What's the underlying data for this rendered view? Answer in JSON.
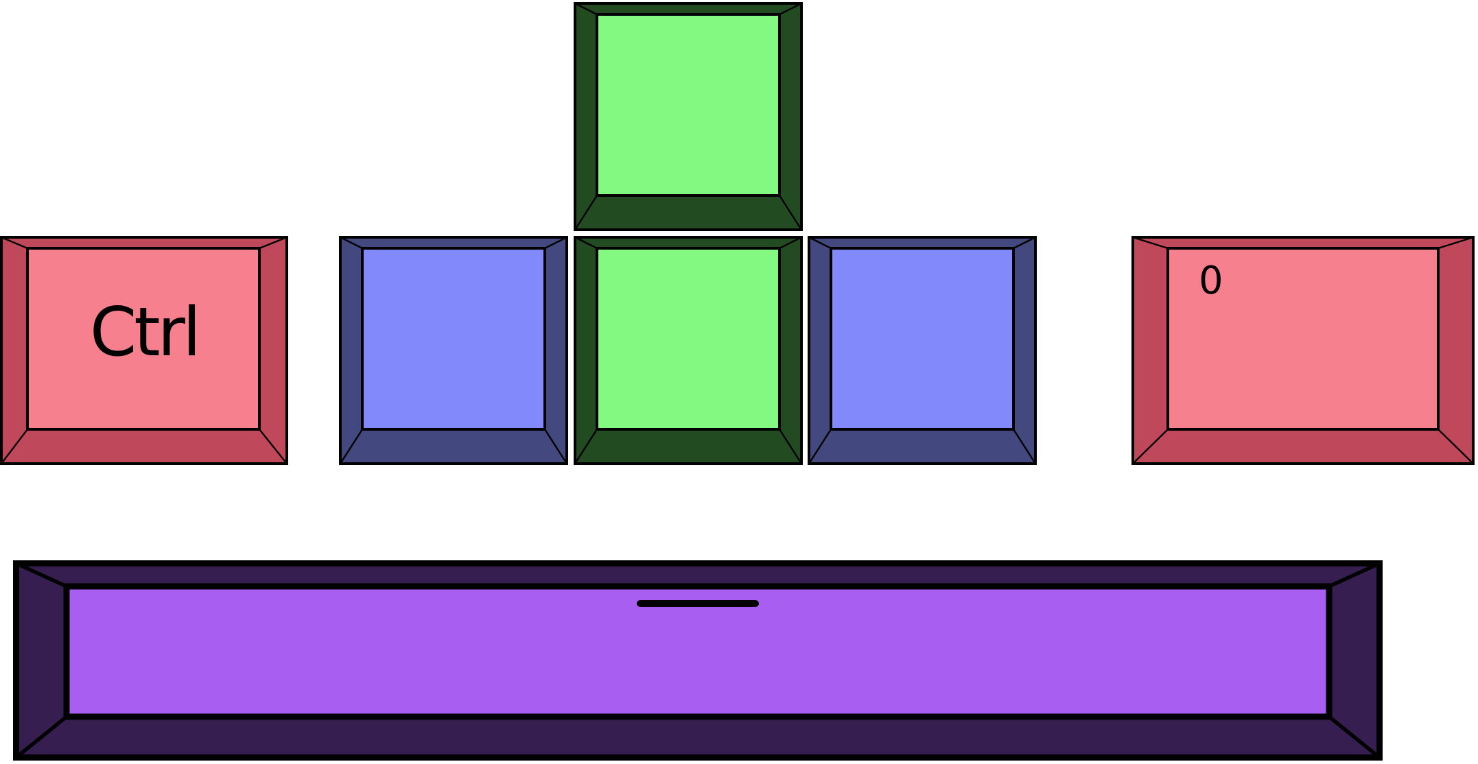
{
  "keys": {
    "ctrl": {
      "legend": "Ctrl",
      "color": "pink"
    },
    "zero": {
      "legend": "0",
      "color": "pink"
    },
    "up": {
      "legend": "",
      "color": "green"
    },
    "down": {
      "legend": "",
      "color": "green"
    },
    "left": {
      "legend": "",
      "color": "blue"
    },
    "right": {
      "legend": "",
      "color": "blue"
    },
    "space": {
      "legend": "",
      "color": "purple",
      "homing_bar": true
    }
  },
  "colors": {
    "pink": {
      "face": "#f7808f",
      "side": "#c0485b"
    },
    "blue": {
      "face": "#8189fb",
      "side": "#43487f"
    },
    "green": {
      "face": "#83f982",
      "side": "#224b22"
    },
    "purple": {
      "face": "#a95ef2",
      "side": "#371e51"
    }
  }
}
